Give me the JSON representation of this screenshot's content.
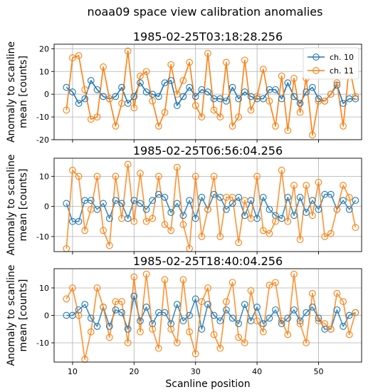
{
  "figure": {
    "suptitle": "noaa09 space view calibration anomalies"
  },
  "colors": {
    "ch10": "#1f77b4",
    "ch11": "#ff7f0e",
    "mix": "#bcbd22",
    "grid": "#b0b0b0"
  },
  "chart_data": [
    {
      "type": "line",
      "title": "1985-02-25T03:18:28.256",
      "ylabel": "Anomaly to scanline\nmean [counts]",
      "xlabel": "",
      "xlim": [
        7,
        57
      ],
      "ylim": [
        -20,
        22
      ],
      "yticks": [
        -20,
        -10,
        0,
        10,
        20
      ],
      "xticks": [
        10,
        20,
        30,
        40,
        50
      ],
      "show_x_ticklabels": false,
      "grid": true,
      "legend": "top-right",
      "x": [
        9,
        10,
        11,
        12,
        13,
        14,
        15,
        16,
        17,
        18,
        19,
        20,
        21,
        22,
        23,
        24,
        25,
        26,
        27,
        28,
        29,
        30,
        31,
        32,
        33,
        34,
        35,
        36,
        37,
        38,
        39,
        40,
        41,
        42,
        43,
        44,
        45,
        46,
        47,
        48,
        49,
        50,
        51,
        52,
        53,
        54,
        55,
        56
      ],
      "series": [
        {
          "name": "ch. 10",
          "color": "#1f77b4",
          "values": [
            3,
            1,
            -4,
            -2,
            6,
            2,
            -1,
            -2,
            -1,
            3,
            -4,
            -1,
            5,
            1,
            0,
            -1,
            5,
            6,
            -5,
            -1,
            3,
            -1,
            2,
            1,
            -2,
            -2,
            -3,
            3,
            -2,
            1,
            -1,
            -2,
            -2,
            2,
            2,
            -2,
            5,
            -1,
            -4,
            1,
            3,
            -2,
            -3,
            0,
            4,
            -4,
            -2,
            -2
          ]
        },
        {
          "name": "ch. 11",
          "color": "#ff7f0e",
          "values": [
            -7,
            16,
            17,
            2,
            -11,
            -10,
            12,
            -2,
            -14,
            -4,
            19,
            -6,
            8,
            10,
            -3,
            -14,
            -8,
            13,
            0,
            6,
            14,
            -5,
            -10,
            18,
            -7,
            -10,
            14,
            -14,
            -10,
            15,
            -7,
            -1,
            11,
            -3,
            -14,
            8,
            -16,
            7,
            -8,
            7,
            -18,
            -3,
            -3,
            0,
            5,
            -14,
            12,
            -1
          ]
        }
      ]
    },
    {
      "type": "line",
      "title": "1985-02-25T06:56:04.256",
      "ylabel": "Anomaly to scanline\nmean [counts]",
      "xlabel": "",
      "xlim": [
        7,
        57
      ],
      "ylim": [
        -15,
        16
      ],
      "yticks": [
        -10,
        0,
        10
      ],
      "xticks": [
        10,
        20,
        30,
        40,
        50
      ],
      "show_x_ticklabels": false,
      "grid": true,
      "legend": "",
      "x": [
        9,
        10,
        11,
        12,
        13,
        14,
        15,
        16,
        17,
        18,
        19,
        20,
        21,
        22,
        23,
        24,
        25,
        26,
        27,
        28,
        29,
        30,
        31,
        32,
        33,
        34,
        35,
        36,
        37,
        38,
        39,
        40,
        41,
        42,
        43,
        44,
        45,
        46,
        47,
        48,
        49,
        50,
        51,
        52,
        53,
        54,
        55,
        56
      ],
      "series": [
        {
          "name": "",
          "color": "#1f77b4",
          "values": [
            1,
            -5,
            -5,
            2,
            2,
            -1,
            1,
            -4,
            2,
            1,
            -4,
            2,
            1,
            -1,
            2,
            4,
            3,
            -2,
            1,
            -3,
            2,
            -4,
            3,
            -1,
            4,
            3,
            -1,
            1,
            3,
            -3,
            2,
            -4,
            3,
            -1,
            -3,
            -4,
            3,
            -3,
            3,
            -2,
            2,
            -1,
            4,
            4,
            -1,
            2,
            -1,
            2
          ]
        },
        {
          "name": "",
          "color": "#ff7f0e",
          "values": [
            -14,
            12,
            10,
            -8,
            -1,
            10,
            -8,
            -13,
            10,
            -4,
            14,
            -5,
            11,
            -5,
            -4,
            10,
            -6,
            -8,
            13,
            -6,
            -14,
            10,
            -10,
            -1,
            10,
            -10,
            3,
            3,
            -12,
            2,
            -4,
            10,
            -8,
            -9,
            -5,
            12,
            -5,
            7,
            -11,
            7,
            -3,
            8,
            -10,
            -9,
            -1,
            7,
            3,
            -7
          ]
        }
      ]
    },
    {
      "type": "line",
      "title": "1985-02-25T18:40:04.256",
      "ylabel": "Anomaly to scanline\nmean [counts]",
      "xlabel": "Scanline position",
      "xlim": [
        7,
        57
      ],
      "ylim": [
        -17,
        17
      ],
      "yticks": [
        -10,
        0,
        10
      ],
      "xticks": [
        10,
        20,
        30,
        40,
        50
      ],
      "show_x_ticklabels": true,
      "grid": true,
      "legend": "",
      "x": [
        9,
        10,
        11,
        12,
        13,
        14,
        15,
        16,
        17,
        18,
        19,
        20,
        21,
        22,
        23,
        24,
        25,
        26,
        27,
        28,
        29,
        30,
        31,
        32,
        33,
        34,
        35,
        36,
        37,
        38,
        39,
        40,
        41,
        42,
        43,
        44,
        45,
        46,
        47,
        48,
        49,
        50,
        51,
        52,
        53,
        54,
        55,
        56
      ],
      "series": [
        {
          "name": "",
          "color": "#1f77b4",
          "values": [
            0,
            0,
            2,
            4,
            -1,
            -4,
            3,
            -4,
            2,
            1,
            -5,
            7,
            -2,
            3,
            -3,
            1,
            1,
            -3,
            4,
            -2,
            0,
            6,
            -5,
            4,
            0,
            -2,
            2,
            -1,
            -3,
            4,
            -2,
            3,
            -3,
            -1,
            2,
            -3,
            -1,
            2,
            -2,
            1,
            3,
            -1,
            -5,
            -5,
            2,
            -4,
            0,
            1
          ]
        },
        {
          "name": "",
          "color": "#ff7f0e",
          "values": [
            6,
            10,
            0,
            -16,
            -6,
            10,
            3,
            -8,
            5,
            5,
            -10,
            14,
            -6,
            15,
            -5,
            -12,
            13,
            -5,
            -10,
            13,
            -6,
            -14,
            5,
            10,
            -7,
            -12,
            5,
            12,
            -8,
            -10,
            9,
            -2,
            -6,
            11,
            12,
            -2,
            -7,
            15,
            -3,
            -10,
            8,
            -2,
            -3,
            -5,
            8,
            5,
            -7,
            1
          ]
        }
      ]
    }
  ]
}
